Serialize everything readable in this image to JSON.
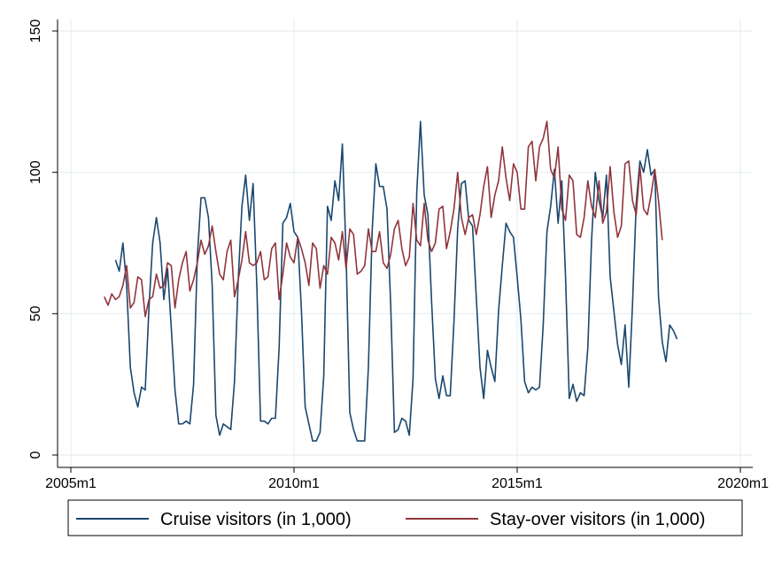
{
  "chart_data": {
    "type": "line",
    "title": "",
    "xlabel": "",
    "ylabel": "",
    "xlim": [
      "2005m1",
      "2020m1"
    ],
    "ylim": [
      0,
      150
    ],
    "x_ticks": [
      "2005m1",
      "2010m1",
      "2015m1",
      "2020m1"
    ],
    "y_ticks": [
      "0",
      "50",
      "100",
      "150"
    ],
    "grid": true,
    "legend_position": "bottom",
    "series": [
      {
        "name": "Cruise visitors (in 1,000)",
        "color": "#1a476f",
        "start": "2006m1",
        "values": [
          69,
          65,
          75,
          60,
          31,
          22,
          17,
          24,
          23,
          52,
          75,
          84,
          75,
          55,
          66,
          45,
          23,
          11,
          11,
          12,
          11,
          25,
          70,
          91,
          91,
          84,
          60,
          14,
          7,
          11,
          10,
          9,
          26,
          62,
          88,
          99,
          83,
          96,
          60,
          12,
          12,
          11,
          13,
          13,
          38,
          82,
          84,
          89,
          79,
          77,
          51,
          17,
          11,
          5,
          5,
          8,
          28,
          88,
          83,
          97,
          90,
          110,
          71,
          15,
          9,
          5,
          5,
          5,
          31,
          79,
          103,
          95,
          95,
          87,
          53,
          8,
          9,
          13,
          12,
          7,
          27,
          93,
          118,
          92,
          85,
          54,
          27,
          20,
          28,
          21,
          21,
          47,
          80,
          96,
          97,
          83,
          81,
          56,
          31,
          20,
          37,
          31,
          26,
          51,
          67,
          82,
          79,
          77,
          63,
          48,
          26,
          22,
          24,
          23,
          24,
          46,
          79,
          88,
          101,
          82,
          97,
          63,
          20,
          25,
          19,
          22,
          21,
          38,
          76,
          100,
          90,
          84,
          99,
          63,
          51,
          39,
          32,
          46,
          24,
          53,
          89,
          104,
          100,
          108,
          99,
          101,
          56,
          40,
          33,
          46,
          44,
          41
        ]
      },
      {
        "name": "Stay-over visitors (in 1,000)",
        "color": "#90353b",
        "start": "2005m10",
        "values": [
          56,
          53,
          57,
          55,
          56,
          60,
          67,
          52,
          54,
          63,
          62,
          49,
          55,
          56,
          64,
          59,
          60,
          68,
          67,
          52,
          62,
          68,
          72,
          58,
          62,
          68,
          76,
          71,
          74,
          81,
          72,
          64,
          62,
          72,
          76,
          56,
          62,
          69,
          79,
          68,
          67,
          68,
          72,
          62,
          63,
          73,
          75,
          55,
          64,
          75,
          70,
          68,
          77,
          73,
          68,
          60,
          75,
          73,
          59,
          67,
          64,
          77,
          75,
          69,
          79,
          66,
          80,
          78,
          64,
          65,
          67,
          80,
          72,
          72,
          79,
          68,
          66,
          71,
          80,
          83,
          73,
          67,
          70,
          89,
          76,
          74,
          89,
          76,
          72,
          75,
          87,
          88,
          73,
          79,
          87,
          100,
          84,
          78,
          84,
          85,
          78,
          85,
          95,
          102,
          84,
          92,
          97,
          109,
          98,
          90,
          103,
          100,
          87,
          87,
          109,
          111,
          97,
          109,
          112,
          118,
          101,
          98,
          109,
          87,
          83,
          99,
          97,
          78,
          77,
          84,
          97,
          88,
          84,
          97,
          82,
          86,
          102,
          86,
          77,
          81,
          103,
          104,
          90,
          85,
          102,
          87,
          85,
          92,
          101,
          90,
          76
        ]
      }
    ]
  }
}
